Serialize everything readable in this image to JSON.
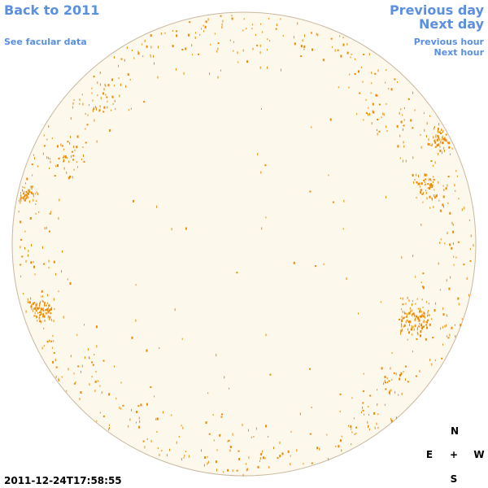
{
  "nav": {
    "back_label": "Back to 2011",
    "facular_label": "See facular data",
    "prev_day_label": "Previous day",
    "next_day_label": "Next day",
    "prev_hour_label": "Previous hour",
    "next_hour_label": "Next hour"
  },
  "compass": {
    "north": "N",
    "east": "E",
    "center": "+",
    "west": "W",
    "south": "S"
  },
  "timestamp": "2011-12-24T17:58:55",
  "colors": {
    "link": "#5b8fe0",
    "disk_fill": "#fdf8ec",
    "disk_stroke": "#c9b8a0",
    "facula_marks": "#ee8a00"
  }
}
